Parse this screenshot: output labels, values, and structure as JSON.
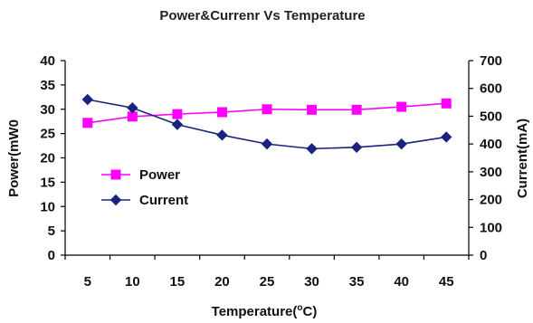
{
  "chart_data": {
    "type": "line",
    "title": "Power&Currenr Vs Temperature",
    "xlabel": "Temperature",
    "xlabel_unit_sup": "o",
    "xlabel_unit_end": "C)",
    "ylabel": "Power(mW0",
    "y2label": "Current(mA)",
    "x": [
      5,
      10,
      15,
      20,
      25,
      30,
      35,
      40,
      45
    ],
    "ylim": [
      0,
      40
    ],
    "y_ticks": [
      0,
      5,
      10,
      15,
      20,
      25,
      30,
      35,
      40
    ],
    "y2lim": [
      0,
      700
    ],
    "y2_ticks": [
      0,
      100,
      200,
      300,
      400,
      500,
      600,
      700
    ],
    "grid": false,
    "legend_position": "left-center",
    "series": [
      {
        "name": "Power",
        "axis": "left",
        "marker": "square",
        "color": "#ff00ff",
        "values": [
          27.2,
          28.5,
          29.0,
          29.4,
          30.0,
          29.9,
          29.9,
          30.5,
          31.2
        ]
      },
      {
        "name": "Current",
        "axis": "right",
        "marker": "diamond",
        "color": "#1a237e",
        "values": [
          560,
          530,
          470,
          432,
          400,
          383,
          388,
          400,
          425
        ]
      }
    ]
  }
}
